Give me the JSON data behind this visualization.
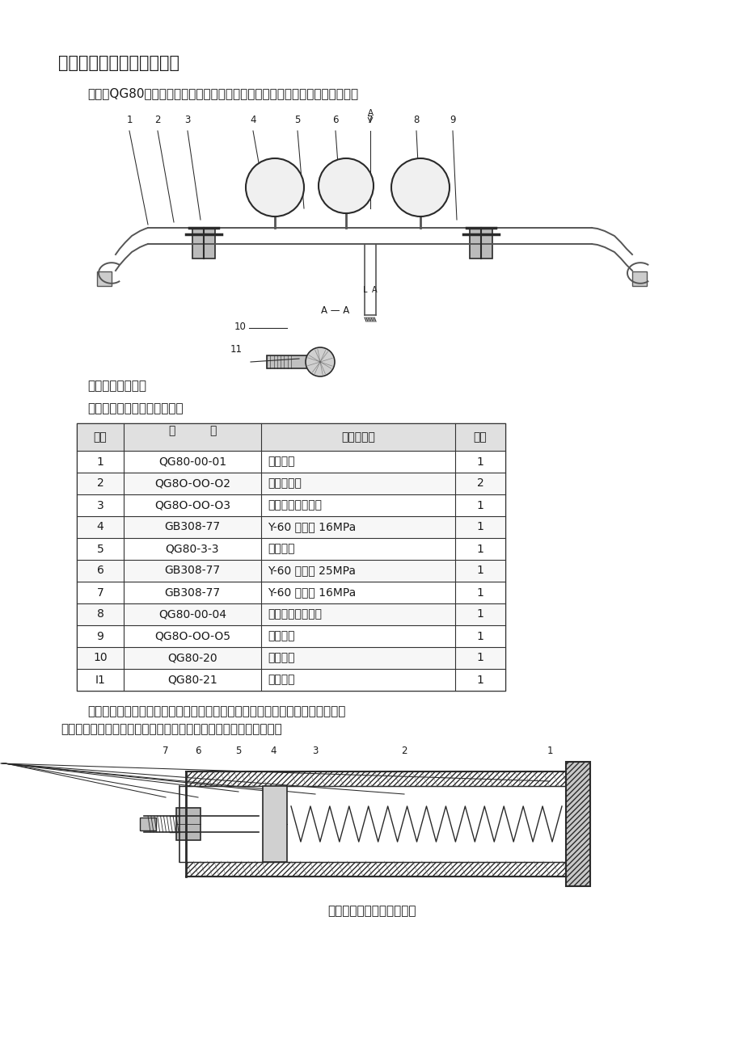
{
  "title": "四、仪器的结构及工作原理",
  "para1": "（一）QG80管汇部件：总气源经管汇装置减压稳压供仪器所需气源。（图一）",
  "fig1_caption": "（一）管汇结构图",
  "table_title": "（表一）管汇组件结构明细表",
  "table_headers": [
    "序号",
    "编       号",
    "名称及规格",
    "数量"
  ],
  "table_col2_header": [
    "编",
    "号"
  ],
  "table_rows": [
    [
      "1",
      "QG80-00-01",
      "高压胶管",
      "1"
    ],
    [
      "2",
      "QG8O-OO-O2",
      "安全阀组件",
      "2"
    ],
    [
      "3",
      "QG8O-OO-O3",
      "减压阀组件（左）",
      "1"
    ],
    [
      "4",
      "GB308-77",
      "Y-60 压力表 16MPa",
      "1"
    ],
    [
      "5",
      "QG80-3-3",
      "三通管接",
      "1"
    ],
    [
      "6",
      "GB308-77",
      "Y-60 压力表 25MPa",
      "1"
    ],
    [
      "7",
      "GB308-77",
      "Y-60 压力表 16MPa",
      "1"
    ],
    [
      "8",
      "QG80-00-04",
      "减压阀组件（右）",
      "1"
    ],
    [
      "9",
      "QG8O-OO-O5",
      "高压胶管",
      "1"
    ],
    [
      "10",
      "QG80-20",
      "气瓶接帽",
      "1"
    ],
    [
      "I1",
      "QG80-21",
      "气瓶接管",
      "1"
    ]
  ],
  "para2_line1": "（二）气压筒组件：它是由压力活塞杆、弹簧等组成，它的作用是给粘附盘施加",
  "para2_line2": "一定的压力，以便使粘附盘与滤饼相粘合，测其摩擦系数。（图三）",
  "fig2_caption": "（图二）气压筒组件结构图",
  "bg_color": "#ffffff",
  "text_color": "#1a1a1a",
  "table_border_color": "#333333"
}
